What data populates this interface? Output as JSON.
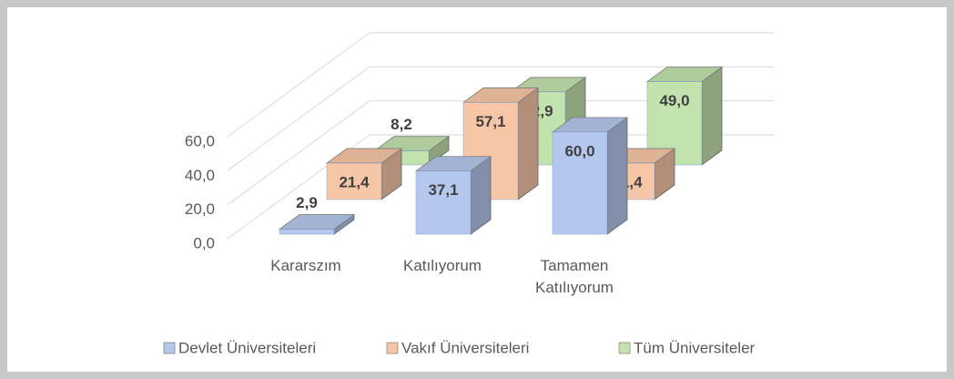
{
  "chart_data": {
    "type": "bar3d",
    "categories": [
      "Kararszım",
      "Katılıyorum",
      "Tamamen Katılıyorum"
    ],
    "series": [
      {
        "name": "Devlet Üniversiteleri",
        "color": "#b4c7ec",
        "values": [
          2.9,
          37.1,
          60.0
        ],
        "value_labels": [
          "2,9",
          "37,1",
          "60,0"
        ]
      },
      {
        "name": "Vakıf Üniversiteleri",
        "color": "#f7c6a6",
        "values": [
          21.4,
          57.1,
          21.4
        ],
        "value_labels": [
          "21,4",
          "57,1",
          "21,4"
        ]
      },
      {
        "name": "Tüm Üniversiteler",
        "color": "#c2e3ad",
        "values": [
          8.2,
          42.9,
          49.0
        ],
        "value_labels": [
          "8,2",
          "42,9",
          "49,0"
        ]
      }
    ],
    "ylim": [
      0,
      60
    ],
    "yticks": [
      {
        "value": 0,
        "label": "0,0"
      },
      {
        "value": 20,
        "label": "20,0"
      },
      {
        "value": 40,
        "label": "40,0"
      },
      {
        "value": 60,
        "label": "60,0"
      }
    ],
    "grid": true,
    "legend": "bottom"
  }
}
